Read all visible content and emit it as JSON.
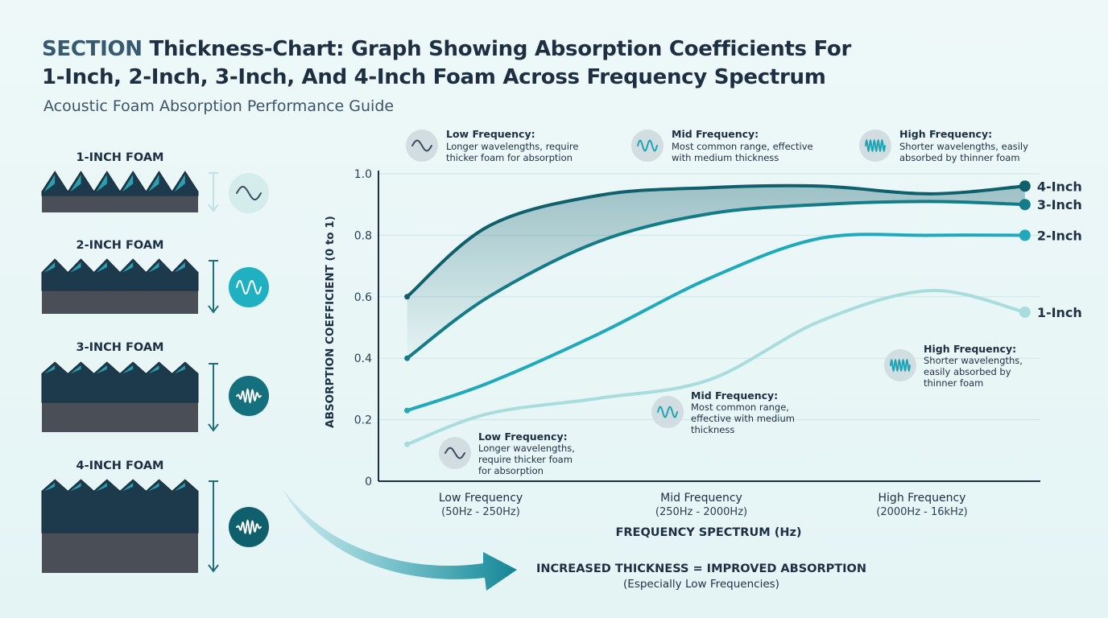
{
  "header": {
    "title_prefix": "SECTION",
    "title_line1": "Thickness-Chart: Graph Showing Absorption Coefficients For",
    "title_line2": "1-Inch, 2-Inch, 3-Inch, And 4-Inch Foam Across Frequency Spectrum",
    "subtitle": "Acoustic Foam Absorption Performance Guide"
  },
  "foams": [
    {
      "label": "1-INCH FOAM",
      "icon": "wave-icon"
    },
    {
      "label": "2-INCH FOAM",
      "icon": "wave-icon"
    },
    {
      "label": "3-INCH FOAM",
      "icon": "wave-icon"
    },
    {
      "label": "4-INCH FOAM",
      "icon": "wave-icon"
    }
  ],
  "colors": {
    "one_inch": "#a8dcdd",
    "two_inch": "#1fa9bb",
    "three_inch": "#147c88",
    "four_inch": "#0f5f6c",
    "foam_body": "#4a4f57",
    "foam_teal": "#2aa7b7",
    "foam_dark": "#1d3a4c",
    "text_dark": "#1e2f43"
  },
  "top_legend": [
    {
      "title": "Low Frequency:",
      "lines": [
        "Longer wavelengths, require",
        "thicker foam for absorption"
      ],
      "icon": "low-wave-icon"
    },
    {
      "title": "Mid Frequency:",
      "lines": [
        "Most common range, effective",
        "with medium thickness"
      ],
      "icon": "mid-wave-icon"
    },
    {
      "title": "High Frequency:",
      "lines": [
        "Shorter wavelengths, easily",
        "absorbed by thinner foam"
      ],
      "icon": "high-wave-icon"
    }
  ],
  "inline_notes": [
    {
      "title": "Low Frequency:",
      "lines": [
        "Longer wavelengths,",
        "require thicker foam",
        "for absorption"
      ],
      "icon": "low-wave-icon"
    },
    {
      "title": "Mid Frequency:",
      "lines": [
        "Most common range,",
        "effective with medium",
        "thickness"
      ],
      "icon": "mid-wave-icon"
    },
    {
      "title": "High Frequency:",
      "lines": [
        "Shorter wavelengths,",
        "easily absorbed by",
        "thinner foam"
      ],
      "icon": "high-wave-icon"
    }
  ],
  "chart_data": {
    "type": "line",
    "xlabel": "FREQUENCY SPECTRUM (Hz)",
    "ylabel": "ABSORPTION COEFFICIENT (0 to 1)",
    "ylim": [
      0,
      1.0
    ],
    "yticks": [
      "0",
      "0.2",
      "0.4",
      "0.6",
      "0.8",
      "1.0"
    ],
    "ytick_values": [
      0,
      0.2,
      0.4,
      0.6,
      0.8,
      1.0
    ],
    "xlim": [
      0,
      3
    ],
    "categories": [
      {
        "name": "Low Frequency",
        "range": "(50Hz - 250Hz)"
      },
      {
        "name": "Mid Frequency",
        "range": "(250Hz - 2000Hz)"
      },
      {
        "name": "High Frequency",
        "range": "(2000Hz - 16kHz)"
      }
    ],
    "category_positions": [
      0.5,
      1.5,
      2.5
    ],
    "grid": true,
    "series": [
      {
        "name": "4-Inch",
        "color": "#0f5f6c",
        "x": [
          0.13,
          0.5,
          1.0,
          1.5,
          2.0,
          2.5,
          2.93
        ],
        "y": [
          0.6,
          0.83,
          0.93,
          0.955,
          0.96,
          0.935,
          0.96
        ]
      },
      {
        "name": "3-Inch",
        "color": "#147c88",
        "x": [
          0.13,
          0.5,
          1.0,
          1.5,
          2.0,
          2.5,
          2.93
        ],
        "y": [
          0.4,
          0.6,
          0.78,
          0.87,
          0.9,
          0.91,
          0.9
        ]
      },
      {
        "name": "2-Inch",
        "color": "#1fa9bb",
        "x": [
          0.13,
          0.5,
          1.0,
          1.5,
          2.0,
          2.5,
          2.93
        ],
        "y": [
          0.23,
          0.32,
          0.48,
          0.66,
          0.79,
          0.8,
          0.8
        ]
      },
      {
        "name": "1-Inch",
        "color": "#a8dcdd",
        "x": [
          0.13,
          0.5,
          1.0,
          1.5,
          2.0,
          2.5,
          2.93
        ],
        "y": [
          0.12,
          0.22,
          0.27,
          0.33,
          0.52,
          0.62,
          0.55
        ]
      }
    ]
  },
  "footer": {
    "conclusion": "INCREASED THICKNESS = IMPROVED ABSORPTION",
    "note": "(Especially Low Frequencies)"
  }
}
